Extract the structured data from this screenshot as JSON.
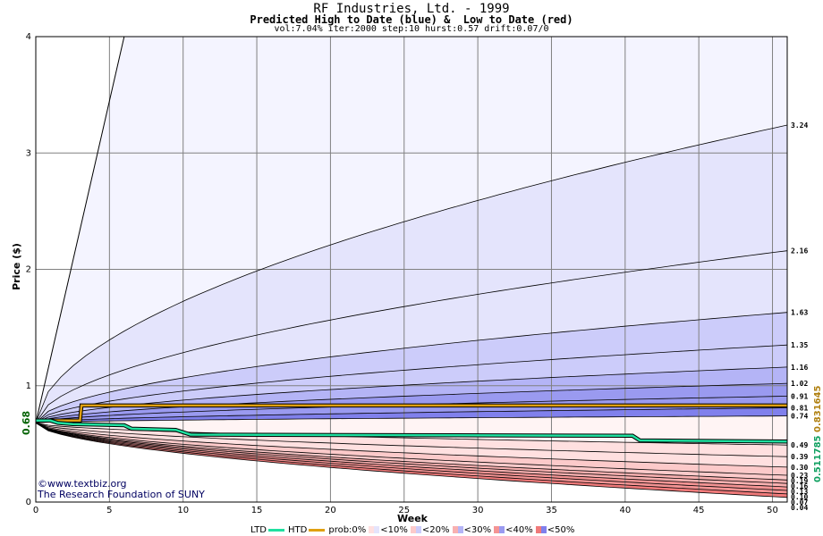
{
  "header": {
    "title": "RF Industries, Ltd. - 1999",
    "subtitle": "Predicted High to Date (blue) &  Low to Date (red)",
    "params": "vol:7.04% iter:2000 step:10 hurst:0.57 drift:0.07/0"
  },
  "credits": {
    "site": "www.textbiz.org",
    "org": "The Research Foundation of SUNY"
  },
  "legend": {
    "ltd_label": "LTD",
    "htd_label": "HTD",
    "prob_label": "prob:0%",
    "bands": [
      "<10%",
      "<20%",
      "<30%",
      "<40%",
      "<50%"
    ]
  },
  "colors": {
    "ltd": "#20e0a0",
    "htd": "#e0a010",
    "blue_bands": [
      "#f4f4ff",
      "#e4e4fc",
      "#ccccfa",
      "#b4b4f6",
      "#9a9af0",
      "#8080ec"
    ],
    "red_bands": [
      "#fff4f4",
      "#ffe0e0",
      "#fccaca",
      "#f8b0b0",
      "#f49494",
      "#f07a7a"
    ]
  },
  "chart_data": {
    "type": "area",
    "title": "RF Industries, Ltd. - 1999",
    "xlabel": "Week",
    "ylabel": "Price ($)",
    "xlim": [
      0,
      51
    ],
    "ylim": [
      0,
      4
    ],
    "x_ticks": [
      "0",
      "5",
      "10",
      "15",
      "20",
      "25",
      "30",
      "35",
      "40",
      "45",
      "50"
    ],
    "y_ticks": [
      "0",
      "1",
      "2",
      "3",
      "4"
    ],
    "grid": true,
    "start_price": 0.68,
    "start_label": "0.68",
    "right_axis_labels": [
      "0.511785",
      "0.831645"
    ],
    "high_percentile_curves": [
      {
        "end": 3.24,
        "label": "3.24"
      },
      {
        "end": 2.16,
        "label": "2.16"
      },
      {
        "end": 1.63,
        "label": "1.63"
      },
      {
        "end": 1.35,
        "label": "1.35"
      },
      {
        "end": 1.16,
        "label": "1.16"
      },
      {
        "end": 1.02,
        "label": "1.02"
      },
      {
        "end": 0.91,
        "label": "0.91"
      },
      {
        "end": 0.81,
        "label": "0.81"
      },
      {
        "end": 0.74,
        "label": "0.74"
      }
    ],
    "low_percentile_curves": [
      {
        "end": 0.49,
        "label": "0.49"
      },
      {
        "end": 0.39,
        "label": "0.39"
      },
      {
        "end": 0.3,
        "label": "0.30"
      },
      {
        "end": 0.23,
        "label": "0.23"
      },
      {
        "end": 0.19,
        "label": "0.19"
      },
      {
        "end": 0.16,
        "label": "0.16"
      },
      {
        "end": 0.13,
        "label": "0.13"
      },
      {
        "end": 0.1,
        "label": "0.10"
      },
      {
        "end": 0.07,
        "label": "0.07"
      },
      {
        "end": 0.04,
        "label": "0.04"
      }
    ],
    "outer_high_line": {
      "x": [
        0,
        6
      ],
      "y": [
        0.68,
        4.0
      ]
    },
    "series": [
      {
        "name": "HTD",
        "x": [
          0,
          3,
          3.1,
          51
        ],
        "y": [
          0.7,
          0.7,
          0.83,
          0.83
        ]
      },
      {
        "name": "LTD",
        "x": [
          0,
          1,
          1.5,
          2.5,
          6,
          6.5,
          9.5,
          10.5,
          40.5,
          41,
          51
        ],
        "y": [
          0.7,
          0.7,
          0.68,
          0.67,
          0.66,
          0.63,
          0.62,
          0.58,
          0.57,
          0.53,
          0.52
        ]
      }
    ]
  }
}
